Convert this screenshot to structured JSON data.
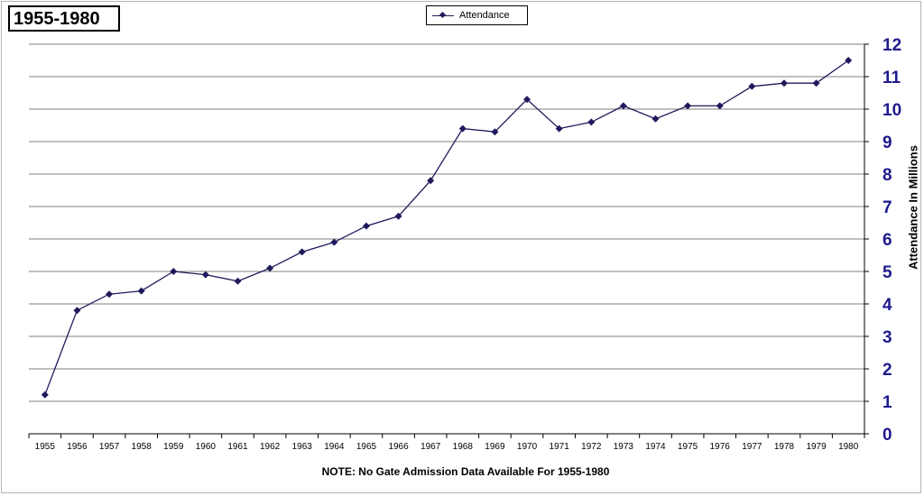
{
  "title": "1955-1980",
  "note": "NOTE: No Gate Admission Data Available For 1955-1980",
  "colors": {
    "series": "#1f1a5c",
    "yticks": "#1f1a8c",
    "grid": "#7f7f7f"
  },
  "chart_data": {
    "type": "line",
    "title": "1955-1980",
    "xlabel": "",
    "ylabel": "Attendance In Millions",
    "ylim": [
      0,
      12
    ],
    "yticks": [
      0,
      1,
      2,
      3,
      4,
      5,
      6,
      7,
      8,
      9,
      10,
      11,
      12
    ],
    "y_axis_position": "right",
    "grid": true,
    "legend": "top-center",
    "categories": [
      "1955",
      "1956",
      "1957",
      "1958",
      "1959",
      "1960",
      "1961",
      "1962",
      "1963",
      "1964",
      "1965",
      "1966",
      "1967",
      "1968",
      "1969",
      "1970",
      "1971",
      "1972",
      "1973",
      "1974",
      "1975",
      "1976",
      "1977",
      "1978",
      "1979",
      "1980"
    ],
    "series": [
      {
        "name": "Attendance",
        "values": [
          1.2,
          3.8,
          4.3,
          4.4,
          5.0,
          4.9,
          4.7,
          5.1,
          5.6,
          5.9,
          6.4,
          6.7,
          7.8,
          9.4,
          9.3,
          10.3,
          9.4,
          9.6,
          10.1,
          9.7,
          10.1,
          10.1,
          10.7,
          10.8,
          10.8,
          11.5
        ]
      }
    ]
  }
}
